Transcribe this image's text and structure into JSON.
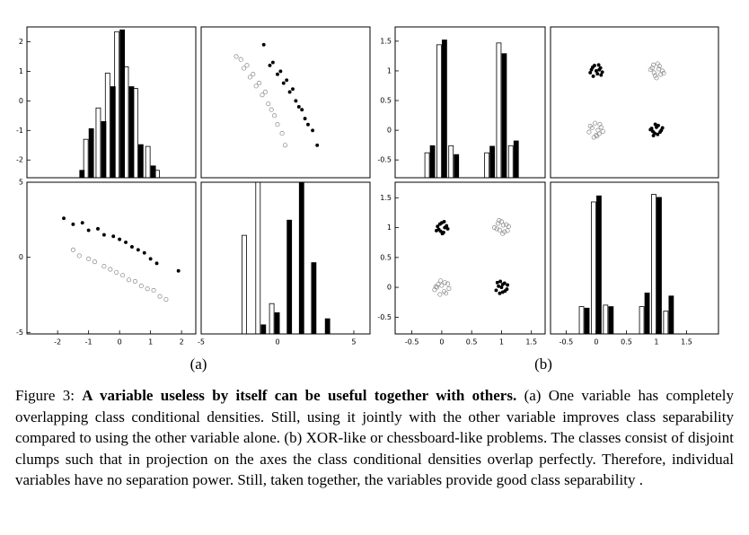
{
  "chart_data": [
    {
      "type": "bar",
      "xlim": [
        -2.99,
        2.46
      ],
      "ylim": [
        -2.6,
        2.5
      ],
      "yticks": [
        -2,
        -1,
        0,
        1,
        2
      ],
      "x": [
        -1.3,
        -1.0,
        -0.6,
        -0.3,
        0.0,
        0.3,
        0.6,
        1.0,
        1.3
      ],
      "series": [
        {
          "color": "#ffffff",
          "values": [
            null,
            -1.3,
            -0.24,
            0.94,
            2.34,
            1.15,
            0.42,
            -1.54,
            -2.35
          ]
        },
        {
          "color": "#000000",
          "values": [
            -2.35,
            -0.94,
            -0.7,
            0.48,
            2.4,
            0.48,
            -1.48,
            -2.2,
            null
          ]
        }
      ]
    },
    {
      "type": "scatter",
      "xlim": [
        -5,
        6.06
      ],
      "ylim": [
        -2.6,
        2.5
      ],
      "series": [
        {
          "color": "#000000",
          "filled": true,
          "x": [
            -0.9,
            -0.5,
            -0.3,
            0.0,
            0.2,
            0.4,
            0.6,
            0.8,
            1.0,
            1.2,
            1.4,
            1.6,
            1.8,
            2.0,
            2.3,
            2.6
          ],
          "values": [
            1.9,
            1.2,
            1.3,
            0.9,
            1.0,
            0.6,
            0.7,
            0.3,
            0.4,
            0.0,
            -0.2,
            -0.3,
            -0.6,
            -0.8,
            -1.0,
            -1.5
          ]
        },
        {
          "color": "#888888",
          "filled": false,
          "x": [
            -2.7,
            -2.4,
            -2.2,
            -2.0,
            -1.8,
            -1.6,
            -1.4,
            -1.2,
            -1.0,
            -0.8,
            -0.6,
            -0.4,
            -0.2,
            0.0,
            0.3,
            0.5
          ],
          "values": [
            1.5,
            1.4,
            1.1,
            1.2,
            0.8,
            0.9,
            0.5,
            0.6,
            0.2,
            0.3,
            -0.1,
            -0.3,
            -0.5,
            -0.8,
            -1.1,
            -1.5
          ]
        }
      ]
    },
    {
      "type": "scatter",
      "xlim": [
        -2.99,
        2.46
      ],
      "ylim": [
        -5.1,
        5
      ],
      "xticks": [
        -2,
        -1,
        0,
        1,
        2
      ],
      "yticks": [
        -5,
        0,
        5
      ],
      "series": [
        {
          "color": "#000000",
          "filled": true,
          "x": [
            -1.8,
            -1.5,
            -1.2,
            -1.0,
            -0.7,
            -0.5,
            -0.2,
            0.0,
            0.2,
            0.4,
            0.6,
            0.8,
            1.0,
            1.2,
            1.9
          ],
          "values": [
            2.6,
            2.2,
            2.3,
            1.8,
            1.9,
            1.5,
            1.4,
            1.2,
            1.0,
            0.7,
            0.5,
            0.3,
            -0.1,
            -0.4,
            -0.9
          ]
        },
        {
          "color": "#888888",
          "filled": false,
          "x": [
            -1.5,
            -1.3,
            -1.0,
            -0.8,
            -0.5,
            -0.3,
            -0.1,
            0.1,
            0.3,
            0.5,
            0.7,
            0.9,
            1.1,
            1.3,
            1.5
          ],
          "values": [
            0.5,
            0.1,
            -0.1,
            -0.3,
            -0.6,
            -0.8,
            -1.0,
            -1.2,
            -1.5,
            -1.6,
            -1.9,
            -2.1,
            -2.2,
            -2.6,
            -2.8
          ]
        }
      ]
    },
    {
      "type": "bar",
      "xlim": [
        -5,
        6.06
      ],
      "ylim": [
        0,
        100
      ],
      "xticks": [
        -5,
        0,
        5
      ],
      "x": [
        -2,
        -1.1,
        -0.2,
        0.6,
        1.4,
        2.2,
        3.1
      ],
      "series": [
        {
          "color": "#ffffff",
          "values": [
            65,
            100,
            20,
            null,
            null,
            null,
            null
          ]
        },
        {
          "color": "#000000",
          "values": [
            null,
            6,
            14,
            75,
            100,
            47,
            10
          ]
        }
      ]
    },
    {
      "type": "bar",
      "xlim": [
        -0.78,
        1.73
      ],
      "ylim": [
        -0.8,
        1.74
      ],
      "yticks": [
        -0.5,
        0,
        0.5,
        1,
        1.5
      ],
      "x": [
        -0.2,
        0,
        0.2,
        0.8,
        1,
        1.2
      ],
      "series": [
        {
          "color": "#ffffff",
          "values": [
            -0.38,
            1.44,
            -0.26,
            -0.38,
            1.47,
            -0.26
          ]
        },
        {
          "color": "#000000",
          "values": [
            -0.26,
            1.52,
            -0.41,
            -0.27,
            1.29,
            -0.18
          ]
        }
      ]
    },
    {
      "type": "scatter",
      "xlim": [
        -0.76,
        2.03
      ],
      "ylim": [
        -0.8,
        1.74
      ],
      "series": [
        {
          "color": "#000000",
          "filled": true,
          "x": [
            -0.08,
            -0.03,
            0.02,
            0.07,
            0.1,
            -0.1,
            0.04,
            -0.05,
            0.0,
            0.08,
            -0.06,
            0.05,
            0.92,
            0.97,
            1.03,
            1.08,
            0.95,
            1.0,
            1.06,
            0.9,
            1.02,
            1.1,
            0.98,
            0.94
          ],
          "values": [
            1.02,
            1.09,
            0.95,
            1.05,
            0.98,
            0.97,
            1.1,
            0.91,
            1.0,
            0.93,
            1.06,
            1.02,
            0.03,
            -0.05,
            0.08,
            0.0,
            -0.09,
            0.05,
            -0.03,
            0.01,
            -0.07,
            0.04,
            0.1,
            -0.02
          ]
        },
        {
          "color": "#888888",
          "filled": false,
          "x": [
            0.93,
            0.98,
            1.05,
            1.1,
            0.96,
            1.02,
            1.07,
            0.9,
            1.0,
            1.04,
            0.95,
            1.12,
            -0.07,
            0.0,
            0.06,
            0.11,
            -0.1,
            0.03,
            -0.04,
            0.08,
            -0.02,
            0.05,
            -0.12,
            0.01
          ],
          "values": [
            1.05,
            0.92,
            1.08,
            1.0,
            0.97,
            1.12,
            0.94,
            1.02,
            0.88,
            1.03,
            1.1,
            0.96,
            0.04,
            -0.08,
            0.1,
            -0.02,
            0.07,
            0.0,
            -0.12,
            0.05,
            0.12,
            -0.06,
            -0.03,
            -0.1
          ]
        }
      ]
    },
    {
      "type": "scatter",
      "xlim": [
        -0.78,
        1.73
      ],
      "ylim": [
        -0.78,
        1.76
      ],
      "xticks": [
        -0.5,
        0,
        0.5,
        1,
        1.5
      ],
      "yticks": [
        -0.5,
        0,
        0.5,
        1,
        1.5
      ],
      "series": [
        {
          "color": "#000000",
          "filled": true,
          "x": [
            1.02,
            1.09,
            0.95,
            1.05,
            0.98,
            0.97,
            1.1,
            0.91,
            1.0,
            0.93,
            1.06,
            1.02,
            0.03,
            -0.05,
            0.08,
            0.0,
            -0.09,
            0.05,
            -0.03,
            0.01,
            -0.07,
            0.04,
            0.1,
            -0.02
          ],
          "values": [
            -0.08,
            -0.03,
            0.02,
            0.07,
            0.1,
            -0.1,
            0.04,
            -0.05,
            0.0,
            0.08,
            -0.06,
            0.05,
            0.92,
            0.97,
            1.03,
            1.08,
            0.95,
            1.0,
            1.06,
            0.9,
            1.02,
            1.1,
            0.98,
            0.94
          ]
        },
        {
          "color": "#888888",
          "filled": false,
          "x": [
            1.05,
            0.92,
            1.08,
            1.0,
            0.97,
            1.12,
            0.94,
            1.02,
            0.88,
            1.03,
            1.1,
            0.96,
            0.04,
            -0.08,
            0.1,
            -0.02,
            0.07,
            0.0,
            -0.12,
            0.05,
            0.12,
            -0.06,
            -0.03,
            -0.1
          ],
          "values": [
            0.93,
            0.98,
            1.05,
            1.1,
            0.96,
            1.02,
            1.07,
            0.9,
            1.0,
            1.04,
            0.95,
            1.12,
            -0.07,
            0.0,
            0.06,
            0.11,
            -0.1,
            0.03,
            -0.04,
            0.08,
            -0.02,
            0.05,
            -0.12,
            0.01
          ]
        }
      ]
    },
    {
      "type": "bar",
      "xlim": [
        -0.76,
        2.03
      ],
      "ylim": [
        0,
        100
      ],
      "xticks": [
        -0.5,
        0,
        0.5,
        1,
        1.5
      ],
      "x": [
        -0.2,
        0,
        0.2,
        0.8,
        1,
        1.2
      ],
      "series": [
        {
          "color": "#ffffff",
          "values": [
            18,
            87,
            19,
            18,
            92,
            15
          ]
        },
        {
          "color": "#000000",
          "values": [
            17,
            91,
            18,
            27,
            90,
            25
          ]
        }
      ]
    }
  ],
  "subfigure_labels": [
    "(a)",
    "(b)"
  ],
  "caption": {
    "label": "Figure 3:",
    "bold": "A variable useless by itself can be useful together with others.",
    "text": "(a) One variable has completely overlapping class conditional densities. Still, using it jointly with the other variable improves class separability compared to using the other variable alone. (b) XOR-like or chessboard-like problems. The classes consist of disjoint clumps such that in projection on the axes the class conditional densities overlap perfectly. Therefore, individual variables have no separation power. Still, taken together, the variables provide good class separability ."
  }
}
